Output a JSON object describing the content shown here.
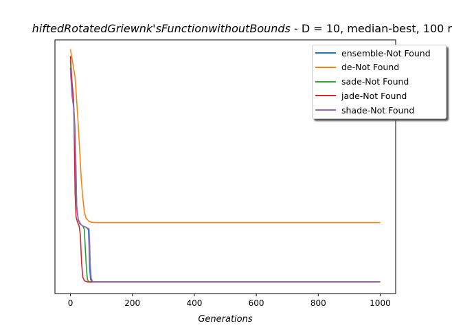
{
  "chart_data": {
    "type": "line",
    "title_function": "hiftedRotatedGriewnk'sFunctionwithoutBounds",
    "title_rest": "  - D = 10, median-best, 100 r",
    "xlabel": "Generations",
    "ylabel": "",
    "xlim": [
      -50,
      1050
    ],
    "x_ticks": [
      0,
      200,
      400,
      600,
      800,
      1000
    ],
    "y_ticks_visible": false,
    "y_value_note": "y axis has no tick labels; y values below are relative (0 = lowest final value, 1 = highest initial value)",
    "ylim": [
      -0.05,
      1.04
    ],
    "legend_position": "upper right",
    "grid": false,
    "series": [
      {
        "name": "ensemble-Not Found",
        "color": "#1f77b4",
        "points": [
          [
            0,
            0.92
          ],
          [
            5,
            0.82
          ],
          [
            10,
            0.77
          ],
          [
            15,
            0.65
          ],
          [
            18,
            0.48
          ],
          [
            20,
            0.33
          ],
          [
            25,
            0.27
          ],
          [
            30,
            0.25
          ],
          [
            40,
            0.24
          ],
          [
            50,
            0.235
          ],
          [
            58,
            0.225
          ],
          [
            60,
            0.16
          ],
          [
            62,
            0.06
          ],
          [
            65,
            0.01
          ],
          [
            70,
            0.0
          ],
          [
            100,
            0.0
          ],
          [
            1000,
            0.0
          ]
        ]
      },
      {
        "name": "de-Not Found",
        "color": "#ff7f0e",
        "points": [
          [
            0,
            1.0
          ],
          [
            5,
            0.96
          ],
          [
            10,
            0.92
          ],
          [
            15,
            0.88
          ],
          [
            20,
            0.78
          ],
          [
            25,
            0.68
          ],
          [
            30,
            0.56
          ],
          [
            35,
            0.44
          ],
          [
            40,
            0.36
          ],
          [
            45,
            0.3
          ],
          [
            50,
            0.275
          ],
          [
            60,
            0.26
          ],
          [
            70,
            0.256
          ],
          [
            80,
            0.255
          ],
          [
            100,
            0.255
          ],
          [
            1000,
            0.255
          ]
        ]
      },
      {
        "name": "sade-Not Found",
        "color": "#2ca02c",
        "points": [
          [
            0,
            0.95
          ],
          [
            5,
            0.84
          ],
          [
            10,
            0.76
          ],
          [
            15,
            0.6
          ],
          [
            18,
            0.42
          ],
          [
            20,
            0.32
          ],
          [
            25,
            0.27
          ],
          [
            30,
            0.255
          ],
          [
            35,
            0.245
          ],
          [
            40,
            0.24
          ],
          [
            45,
            0.225
          ],
          [
            48,
            0.14
          ],
          [
            52,
            0.05
          ],
          [
            55,
            0.01
          ],
          [
            60,
            0.0
          ],
          [
            100,
            0.0
          ],
          [
            1000,
            0.0
          ]
        ]
      },
      {
        "name": "jade-Not Found",
        "color": "#d62728",
        "points": [
          [
            0,
            0.97
          ],
          [
            5,
            0.86
          ],
          [
            10,
            0.78
          ],
          [
            12,
            0.65
          ],
          [
            15,
            0.38
          ],
          [
            18,
            0.28
          ],
          [
            22,
            0.26
          ],
          [
            28,
            0.24
          ],
          [
            32,
            0.2
          ],
          [
            36,
            0.08
          ],
          [
            40,
            0.02
          ],
          [
            45,
            0.005
          ],
          [
            55,
            0.0
          ],
          [
            100,
            0.0
          ],
          [
            1000,
            0.0
          ]
        ]
      },
      {
        "name": "shade-Not Found",
        "color": "#9467bd",
        "points": [
          [
            0,
            0.91
          ],
          [
            5,
            0.8
          ],
          [
            10,
            0.75
          ],
          [
            15,
            0.62
          ],
          [
            18,
            0.45
          ],
          [
            20,
            0.32
          ],
          [
            25,
            0.27
          ],
          [
            30,
            0.25
          ],
          [
            40,
            0.24
          ],
          [
            50,
            0.235
          ],
          [
            60,
            0.228
          ],
          [
            62,
            0.17
          ],
          [
            64,
            0.07
          ],
          [
            67,
            0.015
          ],
          [
            72,
            0.0
          ],
          [
            100,
            0.0
          ],
          [
            1000,
            0.0
          ]
        ]
      }
    ]
  }
}
